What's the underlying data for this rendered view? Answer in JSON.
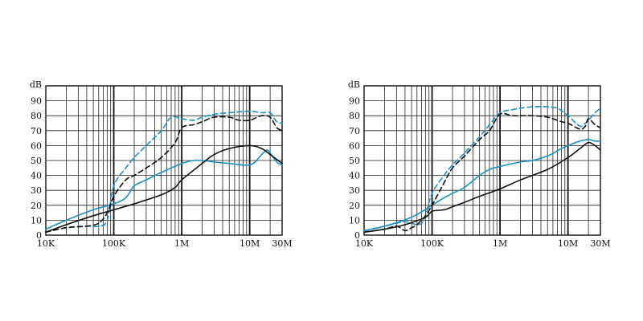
{
  "chart_data": [
    {
      "type": "line",
      "xscale": "log",
      "xlim": [
        10000,
        30000000
      ],
      "ylim": [
        0,
        100
      ],
      "ylabel": "dB",
      "yticks": [
        0,
        10,
        20,
        30,
        40,
        50,
        60,
        70,
        80,
        90
      ],
      "xticks": [
        {
          "value": 10000,
          "label": "10K"
        },
        {
          "value": 100000,
          "label": "100K"
        },
        {
          "value": 1000000,
          "label": "1M"
        },
        {
          "value": 10000000,
          "label": "10M"
        },
        {
          "value": 30000000,
          "label": "30M"
        }
      ],
      "grid": true,
      "series": [
        {
          "color": "#1e8fc6",
          "dash": false,
          "points": [
            [
              10000,
              4
            ],
            [
              20000,
              10
            ],
            [
              50000,
              17
            ],
            [
              100000,
              21
            ],
            [
              150000,
              25
            ],
            [
              200000,
              33
            ],
            [
              300000,
              37
            ],
            [
              500000,
              42
            ],
            [
              1000000,
              48
            ],
            [
              1500000,
              50
            ],
            [
              2000000,
              50
            ],
            [
              3000000,
              49
            ],
            [
              5000000,
              48
            ],
            [
              8000000,
              47
            ],
            [
              10000000,
              47
            ],
            [
              12000000,
              49
            ],
            [
              15000000,
              54
            ],
            [
              18000000,
              57
            ],
            [
              20000000,
              55
            ],
            [
              25000000,
              49
            ],
            [
              30000000,
              47
            ]
          ]
        },
        {
          "color": "#1e8fc6",
          "dash": true,
          "points": [
            [
              10000,
              2
            ],
            [
              20000,
              5
            ],
            [
              40000,
              6
            ],
            [
              60000,
              6
            ],
            [
              80000,
              10
            ],
            [
              100000,
              33
            ],
            [
              150000,
              45
            ],
            [
              200000,
              52
            ],
            [
              300000,
              60
            ],
            [
              500000,
              70
            ],
            [
              700000,
              79
            ],
            [
              1000000,
              78
            ],
            [
              1500000,
              77
            ],
            [
              2000000,
              79
            ],
            [
              3000000,
              81
            ],
            [
              5000000,
              82
            ],
            [
              10000000,
              83
            ],
            [
              15000000,
              82
            ],
            [
              20000000,
              82
            ],
            [
              25000000,
              76
            ],
            [
              30000000,
              75
            ]
          ]
        },
        {
          "color": "#111111",
          "dash": false,
          "points": [
            [
              10000,
              2
            ],
            [
              20000,
              7
            ],
            [
              50000,
              13
            ],
            [
              100000,
              17
            ],
            [
              200000,
              21
            ],
            [
              500000,
              27
            ],
            [
              800000,
              32
            ],
            [
              1000000,
              37
            ],
            [
              2000000,
              48
            ],
            [
              3000000,
              54
            ],
            [
              5000000,
              58
            ],
            [
              10000000,
              60
            ],
            [
              15000000,
              58
            ],
            [
              20000000,
              54
            ],
            [
              30000000,
              48
            ]
          ]
        },
        {
          "color": "#111111",
          "dash": true,
          "points": [
            [
              10000,
              2
            ],
            [
              20000,
              5
            ],
            [
              40000,
              6
            ],
            [
              60000,
              8
            ],
            [
              80000,
              15
            ],
            [
              100000,
              26
            ],
            [
              150000,
              37
            ],
            [
              200000,
              40
            ],
            [
              300000,
              45
            ],
            [
              500000,
              52
            ],
            [
              800000,
              62
            ],
            [
              1000000,
              72
            ],
            [
              1500000,
              74
            ],
            [
              2000000,
              76
            ],
            [
              3000000,
              79
            ],
            [
              5000000,
              79
            ],
            [
              7000000,
              77
            ],
            [
              10000000,
              77
            ],
            [
              15000000,
              80
            ],
            [
              20000000,
              79
            ],
            [
              25000000,
              72
            ],
            [
              30000000,
              70
            ]
          ]
        }
      ]
    },
    {
      "type": "line",
      "xscale": "log",
      "xlim": [
        10000,
        30000000
      ],
      "ylim": [
        0,
        100
      ],
      "ylabel": "dB",
      "yticks": [
        0,
        10,
        20,
        30,
        40,
        50,
        60,
        70,
        80,
        90
      ],
      "xticks": [
        {
          "value": 10000,
          "label": "10K"
        },
        {
          "value": 100000,
          "label": "100K"
        },
        {
          "value": 1000000,
          "label": "1M"
        },
        {
          "value": 10000000,
          "label": "10M"
        },
        {
          "value": 30000000,
          "label": "30M"
        }
      ],
      "grid": true,
      "series": [
        {
          "color": "#1e8fc6",
          "dash": false,
          "points": [
            [
              10000,
              3
            ],
            [
              20000,
              6
            ],
            [
              50000,
              12
            ],
            [
              100000,
              20
            ],
            [
              150000,
              25
            ],
            [
              200000,
              28
            ],
            [
              300000,
              32
            ],
            [
              500000,
              40
            ],
            [
              700000,
              44
            ],
            [
              1000000,
              46
            ],
            [
              2000000,
              49
            ],
            [
              3000000,
              50
            ],
            [
              5000000,
              53
            ],
            [
              8000000,
              58
            ],
            [
              10000000,
              60
            ],
            [
              15000000,
              63
            ],
            [
              20000000,
              64
            ],
            [
              25000000,
              63
            ],
            [
              30000000,
              63
            ]
          ]
        },
        {
          "color": "#1e8fc6",
          "dash": true,
          "points": [
            [
              10000,
              3
            ],
            [
              20000,
              6
            ],
            [
              30000,
              8
            ],
            [
              40000,
              9
            ],
            [
              50000,
              8
            ],
            [
              60000,
              7
            ],
            [
              70000,
              8
            ],
            [
              80000,
              13
            ],
            [
              100000,
              28
            ],
            [
              150000,
              40
            ],
            [
              200000,
              47
            ],
            [
              300000,
              55
            ],
            [
              500000,
              66
            ],
            [
              700000,
              74
            ],
            [
              1000000,
              82
            ],
            [
              1500000,
              84
            ],
            [
              2000000,
              85
            ],
            [
              3000000,
              86
            ],
            [
              5000000,
              86
            ],
            [
              7000000,
              85
            ],
            [
              10000000,
              80
            ],
            [
              15000000,
              73
            ],
            [
              18000000,
              75
            ],
            [
              20000000,
              77
            ],
            [
              25000000,
              82
            ],
            [
              30000000,
              85
            ]
          ]
        },
        {
          "color": "#111111",
          "dash": false,
          "points": [
            [
              10000,
              2
            ],
            [
              20000,
              4
            ],
            [
              40000,
              7
            ],
            [
              80000,
              12
            ],
            [
              100000,
              16
            ],
            [
              150000,
              17
            ],
            [
              200000,
              19
            ],
            [
              300000,
              22
            ],
            [
              500000,
              26
            ],
            [
              1000000,
              31
            ],
            [
              2000000,
              37
            ],
            [
              5000000,
              44
            ],
            [
              10000000,
              52
            ],
            [
              15000000,
              58
            ],
            [
              20000000,
              62
            ],
            [
              25000000,
              60
            ],
            [
              30000000,
              57
            ]
          ]
        },
        {
          "color": "#111111",
          "dash": true,
          "points": [
            [
              10000,
              2
            ],
            [
              20000,
              4
            ],
            [
              30000,
              6
            ],
            [
              40000,
              3
            ],
            [
              50000,
              5
            ],
            [
              60000,
              7
            ],
            [
              80000,
              13
            ],
            [
              100000,
              20
            ],
            [
              150000,
              35
            ],
            [
              200000,
              45
            ],
            [
              300000,
              53
            ],
            [
              500000,
              64
            ],
            [
              700000,
              70
            ],
            [
              1000000,
              81
            ],
            [
              1500000,
              80
            ],
            [
              2000000,
              80
            ],
            [
              3000000,
              80
            ],
            [
              5000000,
              79
            ],
            [
              8000000,
              76
            ],
            [
              10000000,
              75
            ],
            [
              15000000,
              71
            ],
            [
              18000000,
              73
            ],
            [
              20000000,
              78
            ],
            [
              25000000,
              74
            ],
            [
              30000000,
              72
            ]
          ]
        }
      ]
    }
  ]
}
